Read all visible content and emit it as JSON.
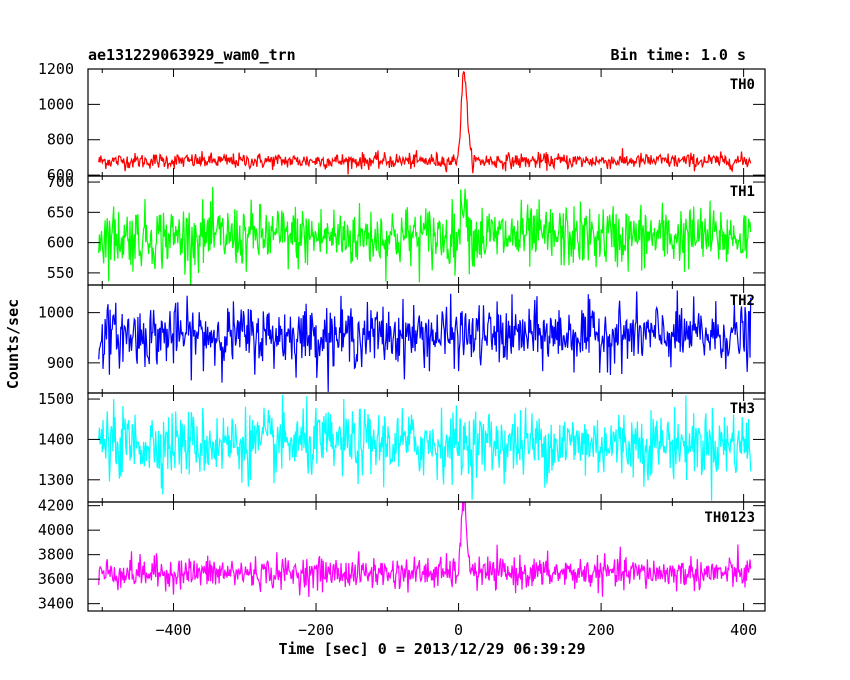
{
  "header": {
    "left_title": "ae131229063929_wam0_trn",
    "right_title": "Bin time: 1.0 s"
  },
  "chart_data": {
    "type": "line",
    "title": "ae131229063929_wam0_trn",
    "bin_time": "Bin time: 1.0 s",
    "xlabel": "Time [sec] 0 = 2013/12/29 06:39:29",
    "ylabel": "Counts/sec",
    "xlim": [
      -520,
      430
    ],
    "x_range": [
      -505,
      410
    ],
    "x_ticks": [
      -400,
      -200,
      0,
      200,
      400
    ],
    "x_tick_labels": [
      "−400",
      "−200",
      "0",
      "200",
      "400"
    ],
    "grid": false,
    "panels": [
      {
        "name": "TH0",
        "color": "#ff0000",
        "ylim": [
          595,
          1200
        ],
        "y_ticks": [
          600,
          800,
          1000,
          1200
        ],
        "y_tick_labels": [
          "600",
          "800",
          "1000",
          "1200"
        ],
        "baseline": 680,
        "noise_sd": 22,
        "peak": {
          "x": 8,
          "y": 1190,
          "width": 4
        }
      },
      {
        "name": "TH1",
        "color": "#00ff00",
        "ylim": [
          530,
          710
        ],
        "y_ticks": [
          550,
          600,
          650,
          700
        ],
        "y_tick_labels": [
          "550",
          "600",
          "650",
          "700"
        ],
        "baseline": 610,
        "noise_sd": 26,
        "peak": {
          "x": 8,
          "y": 695,
          "width": 3
        }
      },
      {
        "name": "TH2",
        "color": "#0000ff",
        "ylim": [
          840,
          1055
        ],
        "y_ticks": [
          900,
          1000
        ],
        "y_tick_labels": [
          "900",
          "1000"
        ],
        "baseline": 955,
        "noise_sd": 30,
        "peak": null
      },
      {
        "name": "TH3",
        "color": "#00ffff",
        "ylim": [
          1245,
          1515
        ],
        "y_ticks": [
          1300,
          1400,
          1500
        ],
        "y_tick_labels": [
          "1300",
          "1400",
          "1500"
        ],
        "baseline": 1390,
        "noise_sd": 42,
        "peak": null
      },
      {
        "name": "TH0123",
        "color": "#ff00ff",
        "ylim": [
          3340,
          4230
        ],
        "y_ticks": [
          3400,
          3600,
          3800,
          4000,
          4200
        ],
        "y_tick_labels": [
          "3400",
          "3600",
          "3800",
          "4000",
          "4200"
        ],
        "baseline": 3650,
        "noise_sd": 65,
        "peak": {
          "x": 8,
          "y": 4210,
          "width": 4
        }
      }
    ]
  }
}
